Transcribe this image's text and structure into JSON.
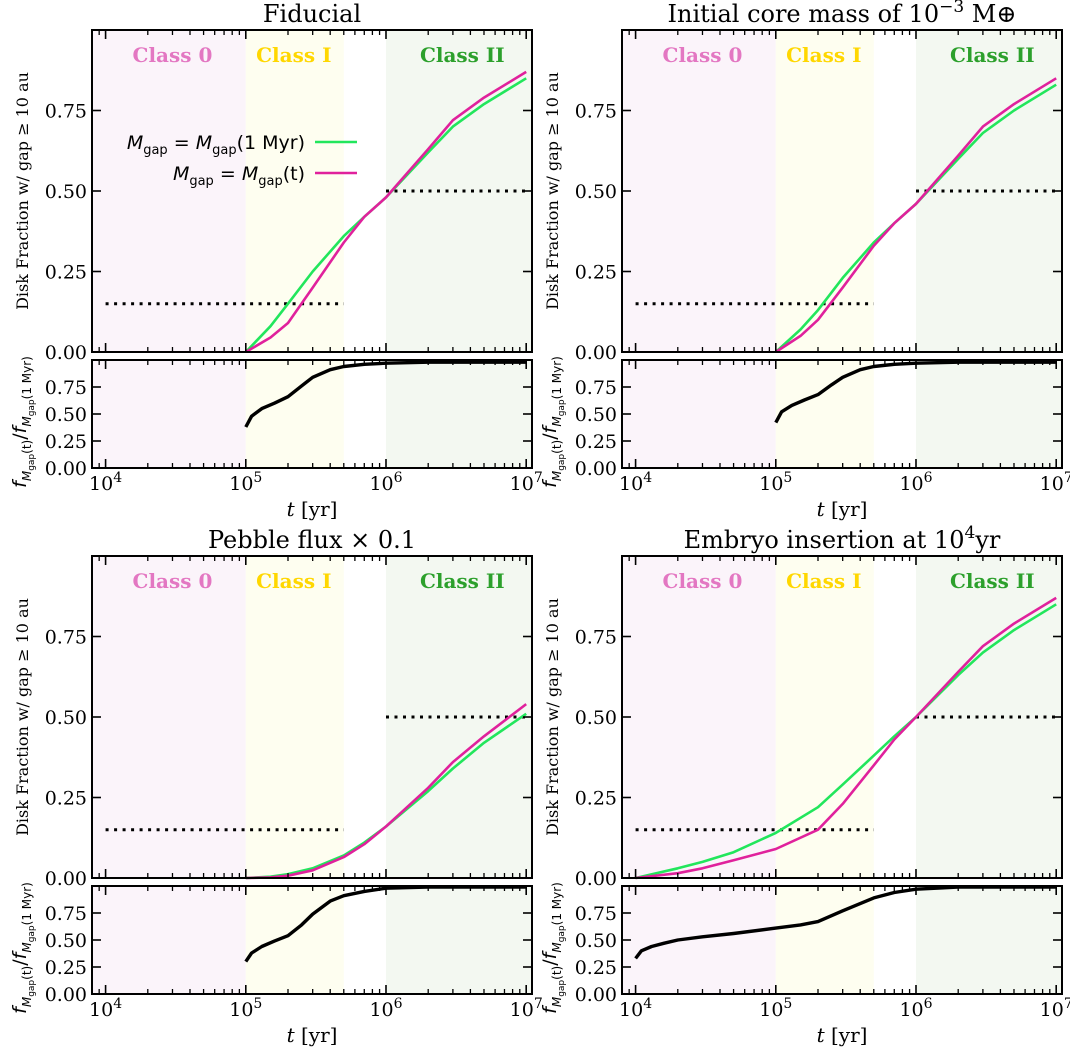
{
  "figure": {
    "shared": {
      "x_label": "t [yr]",
      "top_y_label": "Disk Fraction w/ gap ≥ 10 au",
      "bottom_y_label": "f_Mgap(t) / f_Mgap(1 Myr)",
      "legend": [
        "M_gap = M_gap(1 Myr)",
        "M_gap = M_gap(t)"
      ],
      "class_labels": [
        "Class 0",
        "Class I",
        "Class II"
      ],
      "colors": {
        "class0_text": "#e377c2",
        "class1_text": "#ffd700",
        "class2_text": "#2ca02c",
        "class0_band": "#fbf4fa",
        "class1_band": "#fefef0",
        "class2_band": "#f3f8f1",
        "series_1myr": "#22e65c",
        "series_t": "#e0219c",
        "ratio": "#000000",
        "reference": "#000000"
      },
      "x_ticks": [
        "10^4",
        "10^5",
        "10^6",
        "10^7"
      ],
      "top_y_ticks": [
        "0.00",
        "0.25",
        "0.50",
        "0.75"
      ],
      "bottom_y_ticks": [
        "0.00",
        "0.25",
        "0.50",
        "0.75"
      ]
    }
  },
  "chart_data": [
    {
      "type": "line",
      "title": "Fiducial",
      "xlabel": "t [yr]",
      "ylabel": "Disk Fraction w/ gap ≥ 10 au",
      "xscale": "log",
      "xlim": [
        8000,
        11000000
      ],
      "ylim": [
        0,
        1.0
      ],
      "legend_position": "upper-left",
      "class_bands": [
        {
          "name": "Class 0",
          "x_range": [
            8000,
            100000
          ]
        },
        {
          "name": "Class I",
          "x_range": [
            100000,
            500000
          ]
        },
        {
          "name": "Class II",
          "x_range": [
            1000000,
            11000000
          ]
        }
      ],
      "reference_lines": [
        {
          "x_range": [
            10000,
            500000
          ],
          "y": 0.15
        },
        {
          "x_range": [
            1000000,
            10000000
          ],
          "y": 0.5
        }
      ],
      "series": [
        {
          "name": "M_gap = M_gap(1 Myr)",
          "x": [
            100000,
            150000,
            200000,
            300000,
            500000,
            700000,
            1000000,
            2000000,
            3000000,
            5000000,
            10000000
          ],
          "y": [
            0.0,
            0.08,
            0.15,
            0.25,
            0.36,
            0.42,
            0.48,
            0.62,
            0.7,
            0.77,
            0.85
          ]
        },
        {
          "name": "M_gap = M_gap(t)",
          "x": [
            100000,
            150000,
            200000,
            300000,
            500000,
            700000,
            1000000,
            2000000,
            3000000,
            5000000,
            10000000
          ],
          "y": [
            0.0,
            0.045,
            0.09,
            0.2,
            0.34,
            0.42,
            0.48,
            0.63,
            0.72,
            0.79,
            0.87
          ]
        }
      ],
      "ratio_panel": {
        "ylabel": "f_Mgap(t) / f_Mgap(1 Myr)",
        "ylim": [
          0,
          1.0
        ],
        "x": [
          100000,
          110000,
          130000,
          160000,
          200000,
          250000,
          300000,
          400000,
          500000,
          700000,
          1000000,
          2000000,
          10000000
        ],
        "y": [
          0.38,
          0.48,
          0.55,
          0.6,
          0.66,
          0.76,
          0.84,
          0.91,
          0.94,
          0.96,
          0.97,
          0.98,
          0.98
        ]
      }
    },
    {
      "type": "line",
      "title": "Initial core mass of 10^-3 M⊕",
      "xlabel": "t [yr]",
      "ylabel": "Disk Fraction w/ gap ≥ 10 au",
      "xscale": "log",
      "xlim": [
        8000,
        11000000
      ],
      "ylim": [
        0,
        1.0
      ],
      "class_bands": [
        {
          "name": "Class 0",
          "x_range": [
            8000,
            100000
          ]
        },
        {
          "name": "Class I",
          "x_range": [
            100000,
            500000
          ]
        },
        {
          "name": "Class II",
          "x_range": [
            1000000,
            11000000
          ]
        }
      ],
      "reference_lines": [
        {
          "x_range": [
            10000,
            500000
          ],
          "y": 0.15
        },
        {
          "x_range": [
            1000000,
            10000000
          ],
          "y": 0.5
        }
      ],
      "series": [
        {
          "name": "M_gap = M_gap(1 Myr)",
          "x": [
            100000,
            150000,
            200000,
            300000,
            500000,
            700000,
            1000000,
            2000000,
            3000000,
            5000000,
            10000000
          ],
          "y": [
            0.0,
            0.07,
            0.13,
            0.23,
            0.34,
            0.4,
            0.46,
            0.6,
            0.68,
            0.75,
            0.83
          ]
        },
        {
          "name": "M_gap = M_gap(t)",
          "x": [
            100000,
            150000,
            200000,
            300000,
            500000,
            700000,
            1000000,
            2000000,
            3000000,
            5000000,
            10000000
          ],
          "y": [
            0.0,
            0.05,
            0.1,
            0.2,
            0.33,
            0.4,
            0.46,
            0.61,
            0.7,
            0.77,
            0.85
          ]
        }
      ],
      "ratio_panel": {
        "ylabel": "f_Mgap(t) / f_Mgap(1 Myr)",
        "ylim": [
          0,
          1.0
        ],
        "x": [
          100000,
          110000,
          130000,
          160000,
          200000,
          250000,
          300000,
          400000,
          500000,
          700000,
          1000000,
          2000000,
          10000000
        ],
        "y": [
          0.42,
          0.52,
          0.58,
          0.63,
          0.68,
          0.77,
          0.84,
          0.91,
          0.94,
          0.96,
          0.97,
          0.98,
          0.98
        ]
      }
    },
    {
      "type": "line",
      "title": "Pebble flux × 0.1",
      "xlabel": "t [yr]",
      "ylabel": "Disk Fraction w/ gap ≥ 10 au",
      "xscale": "log",
      "xlim": [
        8000,
        11000000
      ],
      "ylim": [
        0,
        1.0
      ],
      "class_bands": [
        {
          "name": "Class 0",
          "x_range": [
            8000,
            100000
          ]
        },
        {
          "name": "Class I",
          "x_range": [
            100000,
            500000
          ]
        },
        {
          "name": "Class II",
          "x_range": [
            1000000,
            11000000
          ]
        }
      ],
      "reference_lines": [
        {
          "x_range": [
            10000,
            500000
          ],
          "y": 0.15
        },
        {
          "x_range": [
            1000000,
            10000000
          ],
          "y": 0.5
        }
      ],
      "series": [
        {
          "name": "M_gap = M_gap(1 Myr)",
          "x": [
            100000,
            150000,
            200000,
            300000,
            500000,
            700000,
            1000000,
            2000000,
            3000000,
            5000000,
            10000000
          ],
          "y": [
            0.0,
            0.004,
            0.012,
            0.03,
            0.07,
            0.11,
            0.16,
            0.27,
            0.34,
            0.42,
            0.51
          ]
        },
        {
          "name": "M_gap = M_gap(t)",
          "x": [
            100000,
            150000,
            200000,
            300000,
            500000,
            700000,
            1000000,
            2000000,
            3000000,
            5000000,
            10000000
          ],
          "y": [
            0.0,
            0.002,
            0.007,
            0.024,
            0.065,
            0.105,
            0.16,
            0.28,
            0.36,
            0.44,
            0.54
          ]
        }
      ],
      "ratio_panel": {
        "ylabel": "f_Mgap(t) / f_Mgap(1 Myr)",
        "ylim": [
          0,
          1.0
        ],
        "x": [
          100000,
          110000,
          130000,
          160000,
          200000,
          250000,
          300000,
          400000,
          500000,
          700000,
          1000000,
          2000000,
          10000000
        ],
        "y": [
          0.3,
          0.38,
          0.44,
          0.49,
          0.54,
          0.64,
          0.74,
          0.86,
          0.91,
          0.95,
          0.98,
          0.99,
          0.99
        ]
      }
    },
    {
      "type": "line",
      "title": "Embryo insertion at 10^4yr",
      "xlabel": "t [yr]",
      "ylabel": "Disk Fraction w/ gap ≥ 10 au",
      "xscale": "log",
      "xlim": [
        8000,
        11000000
      ],
      "ylim": [
        0,
        1.0
      ],
      "class_bands": [
        {
          "name": "Class 0",
          "x_range": [
            8000,
            100000
          ]
        },
        {
          "name": "Class I",
          "x_range": [
            100000,
            500000
          ]
        },
        {
          "name": "Class II",
          "x_range": [
            1000000,
            11000000
          ]
        }
      ],
      "reference_lines": [
        {
          "x_range": [
            10000,
            500000
          ],
          "y": 0.15
        },
        {
          "x_range": [
            1000000,
            10000000
          ],
          "y": 0.5
        }
      ],
      "series": [
        {
          "name": "M_gap = M_gap(1 Myr)",
          "x": [
            10000,
            20000,
            30000,
            50000,
            100000,
            200000,
            300000,
            500000,
            700000,
            1000000,
            2000000,
            3000000,
            5000000,
            10000000
          ],
          "y": [
            0.0,
            0.03,
            0.05,
            0.08,
            0.14,
            0.22,
            0.29,
            0.38,
            0.44,
            0.5,
            0.63,
            0.7,
            0.77,
            0.85
          ]
        },
        {
          "name": "M_gap = M_gap(t)",
          "x": [
            10000,
            20000,
            30000,
            50000,
            100000,
            200000,
            300000,
            500000,
            700000,
            1000000,
            2000000,
            3000000,
            5000000,
            10000000
          ],
          "y": [
            0.0,
            0.015,
            0.03,
            0.055,
            0.09,
            0.15,
            0.23,
            0.35,
            0.43,
            0.5,
            0.64,
            0.72,
            0.79,
            0.87
          ]
        }
      ],
      "ratio_panel": {
        "ylabel": "f_Mgap(t) / f_Mgap(1 Myr)",
        "ylim": [
          0,
          1.0
        ],
        "x": [
          10000,
          11000,
          13000,
          16000,
          20000,
          30000,
          50000,
          100000,
          150000,
          200000,
          300000,
          500000,
          700000,
          1000000,
          2000000,
          10000000
        ],
        "y": [
          0.33,
          0.4,
          0.44,
          0.47,
          0.5,
          0.53,
          0.56,
          0.61,
          0.64,
          0.67,
          0.77,
          0.89,
          0.94,
          0.97,
          0.99,
          0.99
        ]
      }
    }
  ]
}
